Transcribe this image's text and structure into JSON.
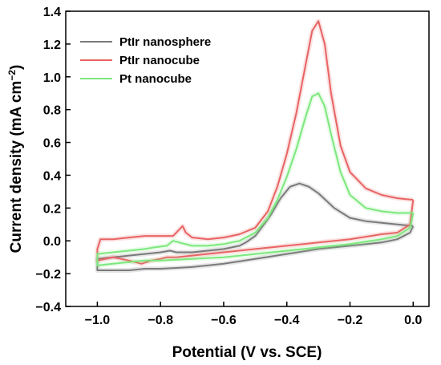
{
  "chart_data": {
    "type": "line",
    "xlabel": "Potential (V vs. SCE)",
    "ylabel": "Current density (mA cm",
    "ylabel_sup": "−2",
    "ylabel_close": ")",
    "xlim": [
      -1.1,
      0.05
    ],
    "ylim": [
      -0.4,
      1.4
    ],
    "xticks": [
      -1.0,
      -0.8,
      -0.6,
      -0.4,
      -0.2,
      0.0
    ],
    "xtick_labels": [
      "−1.0",
      "−0.8",
      "−0.6",
      "−0.4",
      "−0.2",
      "0.0"
    ],
    "yticks": [
      -0.4,
      -0.2,
      0.0,
      0.2,
      0.4,
      0.6,
      0.8,
      1.0,
      1.2,
      1.4
    ],
    "ytick_labels": [
      "−0.4",
      "−0.2",
      "0.0",
      "0.2",
      "0.4",
      "0.6",
      "0.8",
      "1.0",
      "1.2",
      "1.4"
    ],
    "grid": false,
    "legend_position": "top-left",
    "series": [
      {
        "name": "PtIr nanosphere",
        "color": "#7a7a7a",
        "points": [
          [
            0.0,
            0.09
          ],
          [
            -0.05,
            0.1
          ],
          [
            -0.1,
            0.11
          ],
          [
            -0.15,
            0.12
          ],
          [
            -0.2,
            0.14
          ],
          [
            -0.25,
            0.2
          ],
          [
            -0.3,
            0.29
          ],
          [
            -0.33,
            0.33
          ],
          [
            -0.36,
            0.35
          ],
          [
            -0.39,
            0.33
          ],
          [
            -0.42,
            0.26
          ],
          [
            -0.45,
            0.16
          ],
          [
            -0.48,
            0.08
          ],
          [
            -0.5,
            0.03
          ],
          [
            -0.53,
            -0.01
          ],
          [
            -0.55,
            -0.03
          ],
          [
            -0.6,
            -0.05
          ],
          [
            -0.65,
            -0.06
          ],
          [
            -0.7,
            -0.07
          ],
          [
            -0.75,
            -0.07
          ],
          [
            -0.77,
            -0.06
          ],
          [
            -0.8,
            -0.07
          ],
          [
            -0.85,
            -0.08
          ],
          [
            -0.9,
            -0.09
          ],
          [
            -0.95,
            -0.1
          ],
          [
            -1.0,
            -0.11
          ],
          [
            -1.0,
            -0.18
          ],
          [
            -0.95,
            -0.18
          ],
          [
            -0.9,
            -0.18
          ],
          [
            -0.85,
            -0.17
          ],
          [
            -0.8,
            -0.17
          ],
          [
            -0.75,
            -0.165
          ],
          [
            -0.7,
            -0.16
          ],
          [
            -0.6,
            -0.14
          ],
          [
            -0.5,
            -0.11
          ],
          [
            -0.4,
            -0.08
          ],
          [
            -0.3,
            -0.05
          ],
          [
            -0.2,
            -0.03
          ],
          [
            -0.1,
            -0.01
          ],
          [
            -0.05,
            0.01
          ],
          [
            -0.01,
            0.05
          ],
          [
            0.0,
            0.09
          ]
        ]
      },
      {
        "name": "PtIr nanocube",
        "color": "#e86464",
        "points": [
          [
            0.0,
            0.25
          ],
          [
            -0.05,
            0.26
          ],
          [
            -0.1,
            0.28
          ],
          [
            -0.15,
            0.32
          ],
          [
            -0.2,
            0.42
          ],
          [
            -0.23,
            0.58
          ],
          [
            -0.26,
            0.9
          ],
          [
            -0.28,
            1.2
          ],
          [
            -0.3,
            1.34
          ],
          [
            -0.32,
            1.28
          ],
          [
            -0.34,
            1.08
          ],
          [
            -0.37,
            0.78
          ],
          [
            -0.4,
            0.53
          ],
          [
            -0.43,
            0.33
          ],
          [
            -0.46,
            0.18
          ],
          [
            -0.5,
            0.08
          ],
          [
            -0.55,
            0.04
          ],
          [
            -0.6,
            0.02
          ],
          [
            -0.65,
            0.01
          ],
          [
            -0.7,
            0.02
          ],
          [
            -0.72,
            0.05
          ],
          [
            -0.73,
            0.09
          ],
          [
            -0.74,
            0.07
          ],
          [
            -0.76,
            0.03
          ],
          [
            -0.8,
            0.03
          ],
          [
            -0.85,
            0.03
          ],
          [
            -0.9,
            0.02
          ],
          [
            -0.95,
            0.01
          ],
          [
            -0.99,
            0.01
          ],
          [
            -1.0,
            -0.05
          ],
          [
            -1.0,
            -0.12
          ],
          [
            -0.95,
            -0.1
          ],
          [
            -0.9,
            -0.12
          ],
          [
            -0.86,
            -0.14
          ],
          [
            -0.83,
            -0.12
          ],
          [
            -0.8,
            -0.11
          ],
          [
            -0.78,
            -0.1
          ],
          [
            -0.75,
            -0.1
          ],
          [
            -0.7,
            -0.09
          ],
          [
            -0.6,
            -0.07
          ],
          [
            -0.5,
            -0.05
          ],
          [
            -0.4,
            -0.03
          ],
          [
            -0.3,
            -0.01
          ],
          [
            -0.2,
            0.01
          ],
          [
            -0.1,
            0.04
          ],
          [
            -0.05,
            0.05
          ],
          [
            -0.01,
            0.1
          ],
          [
            0.0,
            0.25
          ]
        ]
      },
      {
        "name": "Pt nanocube",
        "color": "#7de87d",
        "points": [
          [
            0.0,
            0.17
          ],
          [
            -0.05,
            0.17
          ],
          [
            -0.1,
            0.18
          ],
          [
            -0.15,
            0.2
          ],
          [
            -0.2,
            0.28
          ],
          [
            -0.23,
            0.42
          ],
          [
            -0.26,
            0.65
          ],
          [
            -0.28,
            0.82
          ],
          [
            -0.3,
            0.9
          ],
          [
            -0.32,
            0.88
          ],
          [
            -0.34,
            0.76
          ],
          [
            -0.37,
            0.56
          ],
          [
            -0.4,
            0.39
          ],
          [
            -0.43,
            0.25
          ],
          [
            -0.46,
            0.14
          ],
          [
            -0.5,
            0.05
          ],
          [
            -0.55,
            0.0
          ],
          [
            -0.6,
            -0.02
          ],
          [
            -0.65,
            -0.03
          ],
          [
            -0.7,
            -0.03
          ],
          [
            -0.74,
            -0.01
          ],
          [
            -0.76,
            0.0
          ],
          [
            -0.78,
            -0.03
          ],
          [
            -0.82,
            -0.04
          ],
          [
            -0.85,
            -0.05
          ],
          [
            -0.9,
            -0.06
          ],
          [
            -0.95,
            -0.07
          ],
          [
            -1.0,
            -0.08
          ],
          [
            -1.0,
            -0.15
          ],
          [
            -0.95,
            -0.14
          ],
          [
            -0.9,
            -0.13
          ],
          [
            -0.85,
            -0.12
          ],
          [
            -0.8,
            -0.12
          ],
          [
            -0.75,
            -0.115
          ],
          [
            -0.7,
            -0.11
          ],
          [
            -0.6,
            -0.1
          ],
          [
            -0.5,
            -0.08
          ],
          [
            -0.4,
            -0.06
          ],
          [
            -0.3,
            -0.04
          ],
          [
            -0.2,
            -0.02
          ],
          [
            -0.1,
            0.01
          ],
          [
            -0.05,
            0.03
          ],
          [
            -0.01,
            0.08
          ],
          [
            0.0,
            0.17
          ]
        ]
      }
    ]
  }
}
